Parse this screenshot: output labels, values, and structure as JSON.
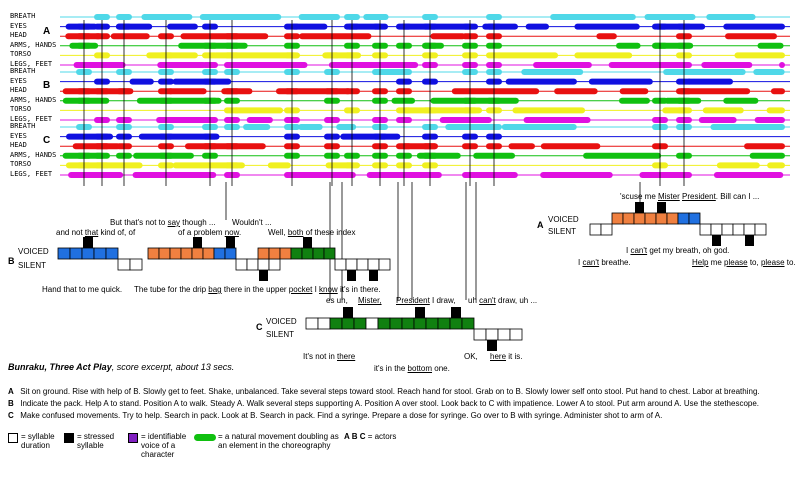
{
  "tracks": {
    "A": [
      "BREATH",
      "EYES",
      "HEAD",
      "ARMS, HANDS",
      "TORSO",
      "LEGS, FEET"
    ],
    "B": [
      "BREATH",
      "EYES",
      "HEAD",
      "ARMS, HANDS",
      "TORSO",
      "LEGS, FEET"
    ],
    "C": [
      "BREATH",
      "EYES",
      "HEAD",
      "ARMS, HANDS",
      "TORSO",
      "LEGS, FEET"
    ]
  },
  "actors": {
    "a": "A",
    "b": "B",
    "c": "C"
  },
  "voiced_label": "VOICED",
  "silent_label": "SILENT",
  "b_text": {
    "t1a": "and not ",
    "t1b": "that",
    "t1c": " kind of, of",
    "t2a": "But that's not to ",
    "t2b": "say",
    "t2c": " though ...",
    "t3a": "of a problem ",
    "t3b": "now",
    "t3c": ".",
    "t4": "Wouldn't ...",
    "t5a": "Well, ",
    "t5b": "both",
    "t5c": " of these index",
    "t6": "Hand that to me quick.",
    "t7a": "The tube for the drip ",
    "t7b": "bag",
    "t7c": " there in the upper ",
    "t7d": "pocket",
    "t7e": " I ",
    "t7f": "know",
    "t7g": " it's in there."
  },
  "c_text": {
    "t1": "es uh,",
    "t2": "Mister,",
    "t3": "President",
    "t4": "I draw,",
    "t5a": "uh ",
    "t5b": "can't",
    "t5c": " draw, uh ...",
    "t6a": "It's not in ",
    "t6b": "there",
    "t7a": "it's in the ",
    "t7b": "bottom",
    "t7c": " one.",
    "t8": "OK,",
    "t9a": "here",
    "t9b": " it is."
  },
  "a_text": {
    "t1a": "'scuse me ",
    "t1b": "Mister",
    "t1c": " ",
    "t1d": "President",
    "t1e": ". Bill can I ...",
    "t2a": "I ",
    "t2b": "can't",
    "t2c": " get my breath, oh god.",
    "t3a": "I ",
    "t3b": "can't",
    "t3c": " breathe.",
    "t4a": "Help",
    "t4b": " me ",
    "t4c": "please",
    "t4d": " to, ",
    "t4e": "please",
    "t4f": " to."
  },
  "caption": {
    "title": "Bunraku, Three Act Play",
    "rest": ", score excerpt, about 13 secs."
  },
  "notes": {
    "A": "Sit on ground.  Rise with help of B.  Slowly get to feet.  Shake, unbalanced.  Take several steps toward stool.  Reach hand for stool.  Grab on to B.  Slowly lower self onto stool.  Put hand to chest.  Labor at breathing.",
    "B": "Indicate the pack.  Help A to stand.  Position A to walk.  Steady A.  Walk several steps supporting A.  Position A over stool.  Look back to C with impatience.  Lower A to stool.  Put arm around A.  Use the stethescope.",
    "C": "Make confused movements.  Try to help.  Search in pack.  Look at B.  Search in pack.  Find a syringe.  Prepare a dose for syringe.  Go over to B with syringe.  Administer shot to arm of A."
  },
  "legend": {
    "syllable": "= syllable\nduration",
    "stressed": "= stressed\nsyllable",
    "voice": "= identifiable\nvoice of a\ncharacter",
    "natural": "= a natural movement doubling as\nan element in the choreography",
    "actors": "A B C",
    "actors_suffix": " = actors"
  },
  "colors": {
    "cyan": "#4fd8e8",
    "blue": "#1010e0",
    "red": "#e81010",
    "green": "#10c010",
    "yellow": "#f0f020",
    "magenta": "#e010e0",
    "orange": "#f08040",
    "mblue": "#2070e0",
    "dgreen": "#108010",
    "purple": "#8020c0"
  }
}
